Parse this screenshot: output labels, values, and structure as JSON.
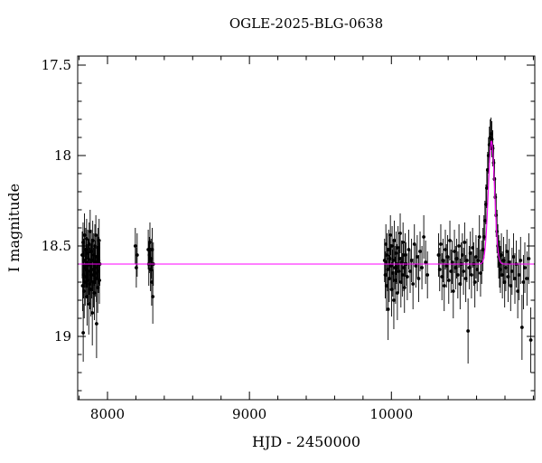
{
  "chart_data": {
    "type": "scatter",
    "title": "OGLE-2025-BLG-0638",
    "xlabel": "HJD - 2450000",
    "ylabel": "I magnitude",
    "xlim": [
      7790,
      11010
    ],
    "ylim_top": 17.45,
    "ylim_bottom": 19.35,
    "y_inverted": true,
    "x_ticks_major": [
      8000,
      9000,
      10000
    ],
    "x_tick_labels": [
      "8000",
      "9000",
      "10000"
    ],
    "x_minor_step": 200,
    "y_ticks_major": [
      17.5,
      18,
      18.5,
      19
    ],
    "y_tick_labels": [
      "17.5",
      "18",
      "18.5",
      "19"
    ],
    "y_minor_step": 0.1,
    "point_color": "#000000",
    "model_color": "#ff00ff",
    "model": {
      "type": "gaussian",
      "baseline": 18.6,
      "t0": 10705,
      "amplitude": 0.68,
      "sigma": 22
    },
    "points": [
      [
        7822,
        18.55,
        0.13
      ],
      [
        7825,
        18.72,
        0.14
      ],
      [
        7828,
        18.48,
        0.11
      ],
      [
        7829,
        18.98,
        0.16
      ],
      [
        7831,
        18.66,
        0.13
      ],
      [
        7833,
        18.58,
        0.12
      ],
      [
        7836,
        18.75,
        0.15
      ],
      [
        7838,
        18.44,
        0.12
      ],
      [
        7841,
        18.62,
        0.11
      ],
      [
        7843,
        18.7,
        0.13
      ],
      [
        7846,
        18.52,
        0.12
      ],
      [
        7848,
        18.59,
        0.14
      ],
      [
        7851,
        18.67,
        0.12
      ],
      [
        7853,
        18.46,
        0.11
      ],
      [
        7856,
        18.78,
        0.16
      ],
      [
        7858,
        18.61,
        0.12
      ],
      [
        7861,
        18.54,
        0.13
      ],
      [
        7863,
        18.69,
        0.12
      ],
      [
        7866,
        18.57,
        0.11
      ],
      [
        7868,
        18.82,
        0.17
      ],
      [
        7871,
        18.49,
        0.12
      ],
      [
        7873,
        18.64,
        0.13
      ],
      [
        7876,
        18.71,
        0.14
      ],
      [
        7878,
        18.42,
        0.12
      ],
      [
        7881,
        18.6,
        0.11
      ],
      [
        7883,
        18.74,
        0.15
      ],
      [
        7886,
        18.53,
        0.12
      ],
      [
        7888,
        18.66,
        0.13
      ],
      [
        7891,
        18.58,
        0.12
      ],
      [
        7893,
        18.87,
        0.18
      ],
      [
        7896,
        18.47,
        0.11
      ],
      [
        7898,
        18.63,
        0.12
      ],
      [
        7901,
        18.7,
        0.14
      ],
      [
        7903,
        18.55,
        0.12
      ],
      [
        7906,
        18.61,
        0.11
      ],
      [
        7908,
        18.76,
        0.15
      ],
      [
        7911,
        18.5,
        0.12
      ],
      [
        7913,
        18.65,
        0.13
      ],
      [
        7916,
        18.59,
        0.12
      ],
      [
        7918,
        18.44,
        0.11
      ],
      [
        7921,
        18.68,
        0.13
      ],
      [
        7923,
        18.93,
        0.19
      ],
      [
        7926,
        18.56,
        0.12
      ],
      [
        7928,
        18.62,
        0.12
      ],
      [
        7931,
        18.73,
        0.14
      ],
      [
        7933,
        18.51,
        0.11
      ],
      [
        7936,
        18.64,
        0.12
      ],
      [
        7938,
        18.58,
        0.13
      ],
      [
        7941,
        18.47,
        0.12
      ],
      [
        7943,
        18.69,
        0.13
      ],
      [
        7946,
        18.6,
        0.12
      ],
      [
        8196,
        18.5,
        0.1
      ],
      [
        8203,
        18.62,
        0.11
      ],
      [
        8209,
        18.55,
        0.12
      ],
      [
        8287,
        18.52,
        0.11
      ],
      [
        8291,
        18.6,
        0.12
      ],
      [
        8295,
        18.55,
        0.1
      ],
      [
        8299,
        18.48,
        0.11
      ],
      [
        8303,
        18.63,
        0.12
      ],
      [
        8307,
        18.57,
        0.11
      ],
      [
        8311,
        18.7,
        0.13
      ],
      [
        8315,
        18.52,
        0.12
      ],
      [
        8319,
        18.78,
        0.15
      ],
      [
        8323,
        18.6,
        0.12
      ],
      [
        9952,
        18.58,
        0.12
      ],
      [
        9957,
        18.66,
        0.13
      ],
      [
        9961,
        18.49,
        0.11
      ],
      [
        9965,
        18.72,
        0.14
      ],
      [
        9969,
        18.55,
        0.12
      ],
      [
        9973,
        18.63,
        0.12
      ],
      [
        9977,
        18.85,
        0.17
      ],
      [
        9981,
        18.52,
        0.11
      ],
      [
        9985,
        18.68,
        0.13
      ],
      [
        9989,
        18.57,
        0.12
      ],
      [
        9993,
        18.44,
        0.11
      ],
      [
        9997,
        18.61,
        0.12
      ],
      [
        10001,
        18.74,
        0.15
      ],
      [
        10005,
        18.5,
        0.11
      ],
      [
        10009,
        18.65,
        0.13
      ],
      [
        10013,
        18.58,
        0.12
      ],
      [
        10017,
        18.8,
        0.16
      ],
      [
        10021,
        18.47,
        0.11
      ],
      [
        10025,
        18.62,
        0.12
      ],
      [
        10029,
        18.69,
        0.13
      ],
      [
        10033,
        18.54,
        0.12
      ],
      [
        10037,
        18.6,
        0.11
      ],
      [
        10042,
        18.76,
        0.15
      ],
      [
        10047,
        18.51,
        0.12
      ],
      [
        10052,
        18.64,
        0.12
      ],
      [
        10057,
        18.57,
        0.13
      ],
      [
        10062,
        18.43,
        0.11
      ],
      [
        10067,
        18.7,
        0.14
      ],
      [
        10072,
        18.59,
        0.12
      ],
      [
        10077,
        18.66,
        0.12
      ],
      [
        10082,
        18.48,
        0.11
      ],
      [
        10087,
        18.62,
        0.13
      ],
      [
        10092,
        18.73,
        0.14
      ],
      [
        10097,
        18.55,
        0.12
      ],
      [
        10102,
        18.6,
        0.12
      ],
      [
        10112,
        18.67,
        0.13
      ],
      [
        10122,
        18.52,
        0.11
      ],
      [
        10132,
        18.64,
        0.12
      ],
      [
        10142,
        18.58,
        0.12
      ],
      [
        10152,
        18.71,
        0.14
      ],
      [
        10162,
        18.49,
        0.11
      ],
      [
        10172,
        18.61,
        0.12
      ],
      [
        10182,
        18.56,
        0.12
      ],
      [
        10192,
        18.68,
        0.13
      ],
      [
        10202,
        18.53,
        0.11
      ],
      [
        10215,
        18.62,
        0.12
      ],
      [
        10228,
        18.45,
        0.12
      ],
      [
        10241,
        18.59,
        0.12
      ],
      [
        10254,
        18.66,
        0.13
      ],
      [
        10332,
        18.55,
        0.12
      ],
      [
        10340,
        18.63,
        0.12
      ],
      [
        10348,
        18.49,
        0.11
      ],
      [
        10356,
        18.67,
        0.13
      ],
      [
        10364,
        18.58,
        0.12
      ],
      [
        10372,
        18.72,
        0.14
      ],
      [
        10380,
        18.52,
        0.11
      ],
      [
        10388,
        18.61,
        0.12
      ],
      [
        10396,
        18.56,
        0.12
      ],
      [
        10404,
        18.69,
        0.13
      ],
      [
        10412,
        18.47,
        0.11
      ],
      [
        10420,
        18.64,
        0.12
      ],
      [
        10428,
        18.59,
        0.12
      ],
      [
        10436,
        18.75,
        0.15
      ],
      [
        10444,
        18.53,
        0.12
      ],
      [
        10452,
        18.62,
        0.12
      ],
      [
        10460,
        18.57,
        0.11
      ],
      [
        10468,
        18.66,
        0.13
      ],
      [
        10476,
        18.5,
        0.12
      ],
      [
        10484,
        18.71,
        0.14
      ],
      [
        10492,
        18.6,
        0.12
      ],
      [
        10500,
        18.55,
        0.12
      ],
      [
        10508,
        18.64,
        0.13
      ],
      [
        10516,
        18.48,
        0.11
      ],
      [
        10524,
        18.68,
        0.13
      ],
      [
        10532,
        18.58,
        0.12
      ],
      [
        10540,
        18.97,
        0.18
      ],
      [
        10548,
        18.62,
        0.12
      ],
      [
        10556,
        18.54,
        0.12
      ],
      [
        10564,
        18.66,
        0.13
      ],
      [
        10572,
        18.51,
        0.11
      ],
      [
        10580,
        18.6,
        0.12
      ],
      [
        10588,
        18.7,
        0.14
      ],
      [
        10596,
        18.56,
        0.12
      ],
      [
        10604,
        18.63,
        0.12
      ],
      [
        10612,
        18.58,
        0.12
      ],
      [
        10620,
        18.45,
        0.12
      ],
      [
        10628,
        18.65,
        0.13
      ],
      [
        10636,
        18.59,
        0.12
      ],
      [
        10645,
        18.52,
        0.12
      ],
      [
        10652,
        18.45,
        0.12
      ],
      [
        10659,
        18.36,
        0.11
      ],
      [
        10666,
        18.27,
        0.11
      ],
      [
        10672,
        18.18,
        0.11
      ],
      [
        10678,
        18.08,
        0.1
      ],
      [
        10684,
        18.0,
        0.1
      ],
      [
        10690,
        17.94,
        0.1
      ],
      [
        10696,
        17.9,
        0.1
      ],
      [
        10702,
        17.88,
        0.09
      ],
      [
        10708,
        17.91,
        0.1
      ],
      [
        10714,
        17.96,
        0.1
      ],
      [
        10720,
        18.04,
        0.1
      ],
      [
        10726,
        18.13,
        0.11
      ],
      [
        10732,
        18.23,
        0.11
      ],
      [
        10738,
        18.33,
        0.12
      ],
      [
        10744,
        18.42,
        0.12
      ],
      [
        10750,
        18.5,
        0.12
      ],
      [
        10756,
        18.56,
        0.12
      ],
      [
        10762,
        18.6,
        0.13
      ],
      [
        10768,
        18.63,
        0.13
      ],
      [
        10775,
        18.55,
        0.12
      ],
      [
        10782,
        18.66,
        0.13
      ],
      [
        10790,
        18.58,
        0.13
      ],
      [
        10798,
        18.7,
        0.14
      ],
      [
        10806,
        18.62,
        0.13
      ],
      [
        10814,
        18.53,
        0.12
      ],
      [
        10822,
        18.67,
        0.14
      ],
      [
        10830,
        18.59,
        0.13
      ],
      [
        10840,
        18.72,
        0.14
      ],
      [
        10850,
        18.64,
        0.13
      ],
      [
        10860,
        18.56,
        0.13
      ],
      [
        10870,
        18.68,
        0.14
      ],
      [
        10880,
        18.6,
        0.13
      ],
      [
        10890,
        18.75,
        0.15
      ],
      [
        10900,
        18.66,
        0.14
      ],
      [
        10910,
        18.58,
        0.13
      ],
      [
        10920,
        18.95,
        0.18
      ],
      [
        10930,
        18.7,
        0.15
      ],
      [
        10940,
        18.62,
        0.14
      ],
      [
        10955,
        18.68,
        0.15
      ],
      [
        10968,
        18.57,
        0.14
      ],
      [
        10982,
        19.02,
        0.18
      ]
    ]
  }
}
